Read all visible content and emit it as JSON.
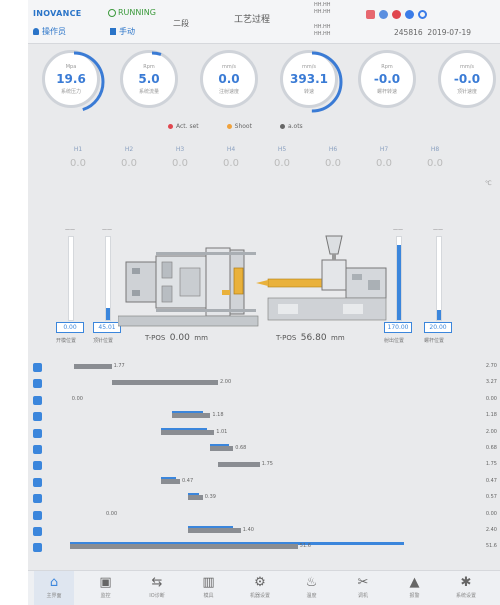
{
  "header": {
    "brand": "INOVANCE",
    "run_status": "RUNNING",
    "user": "操作员",
    "mode": "手动",
    "step": "二段",
    "title": "工艺过程",
    "mini_top": [
      "HH.HH",
      "HH.HH"
    ],
    "mini_bottom": [
      "HH.HH",
      "HH.HH"
    ],
    "date_code": "245816",
    "date": "2019-07-19"
  },
  "gauges": [
    {
      "unit": "Mpa",
      "value": "19.6",
      "label": "系统压力",
      "progress": 0.45
    },
    {
      "unit": "Rpm",
      "value": "5.0",
      "label": "系统流量",
      "progress": 0.05
    },
    {
      "unit": "mm/s",
      "value": "0.0",
      "label": "注射速度",
      "progress": 0
    },
    {
      "unit": "mm/s",
      "value": "393.1",
      "label": "转速",
      "progress": 0.5
    },
    {
      "unit": "Rpm",
      "value": "-0.0",
      "label": "螺杆转速",
      "progress": 0
    },
    {
      "unit": "mm/s",
      "value": "-0.0",
      "label": "顶针速度",
      "progress": 0
    }
  ],
  "legend": [
    {
      "label": "Act. set",
      "color": "#e0474f"
    },
    {
      "label": "Shoot",
      "color": "#f0a23c"
    },
    {
      "label": "a.ots",
      "color": "#666666"
    }
  ],
  "temps": {
    "headers": [
      "H1",
      "H2",
      "H3",
      "H4",
      "H5",
      "H6",
      "H7",
      "H8"
    ],
    "values": [
      "0.0",
      "0.0",
      "0.0",
      "0.0",
      "0.0",
      "0.0",
      "0.0",
      "0.0"
    ],
    "unit": "℃"
  },
  "machine": {
    "left_bars": [
      {
        "cap": "——",
        "value": "0.00",
        "label": "开模位置",
        "level": 0
      },
      {
        "cap": "——",
        "value": "45.01",
        "label": "顶针位置",
        "level": 0.15
      }
    ],
    "right_bars": [
      {
        "cap": "——",
        "value": "170.00",
        "label": "射出位置",
        "level": 0.9
      },
      {
        "cap": "——",
        "value": "20.00",
        "label": "螺杆位置",
        "level": 0.12
      }
    ],
    "pos1_label": "T-POS",
    "pos1_value": "0.00",
    "pos1_unit": "mm",
    "pos2_label": "T-POS",
    "pos2_value": "56.80",
    "pos2_unit": "mm"
  },
  "bars": [
    {
      "icon": "clamp-icon",
      "gray_pct": 0.1,
      "blue_pct": 0,
      "label": "1.77",
      "right": "2.70"
    },
    {
      "icon": "open-icon",
      "gray_pct": 0.28,
      "blue_pct": 0,
      "label": "2.00",
      "right": "3.27"
    },
    {
      "icon": "eject-icon",
      "gray_pct": 0,
      "blue_pct": 0,
      "label": "0.00",
      "right": "0.00"
    },
    {
      "icon": "inject-icon",
      "gray_pct": 0.1,
      "blue_pct": 0.08,
      "label": "1.18",
      "right": "1.18"
    },
    {
      "icon": "hold-icon",
      "gray_pct": 0.14,
      "blue_pct": 0.12,
      "label": "1.01",
      "right": "2.00"
    },
    {
      "icon": "charge-icon",
      "gray_pct": 0.06,
      "blue_pct": 0.05,
      "label": "0.68",
      "right": "0.68"
    },
    {
      "icon": "cool-icon",
      "gray_pct": 0.11,
      "blue_pct": 0,
      "label": "1.75",
      "right": "1.75"
    },
    {
      "icon": "carriage-icon",
      "gray_pct": 0.05,
      "blue_pct": 0.04,
      "label": "0.47",
      "right": "0.47"
    },
    {
      "icon": "core-icon",
      "gray_pct": 0.04,
      "blue_pct": 0.03,
      "label": "0.39",
      "right": "0.57"
    },
    {
      "icon": "robot-icon",
      "gray_pct": 0,
      "blue_pct": 0,
      "label": "0.00",
      "right": "0.00"
    },
    {
      "icon": "mold-icon",
      "gray_pct": 0.14,
      "blue_pct": 0.12,
      "label": "1.40",
      "right": "2.40"
    },
    {
      "icon": "cycle-icon",
      "gray_pct": 0.6,
      "blue_pct": 0.88,
      "label": "51.6",
      "right": "51.6"
    }
  ],
  "nav": [
    {
      "icon": "home-icon",
      "label": "主界面",
      "active": true
    },
    {
      "icon": "monitor-icon",
      "label": "监控"
    },
    {
      "icon": "io-icon",
      "label": "IO诊断"
    },
    {
      "icon": "mold-set-icon",
      "label": "模具"
    },
    {
      "icon": "gear-icon",
      "label": "机器设置"
    },
    {
      "icon": "temp-icon",
      "label": "温度"
    },
    {
      "icon": "tools-icon",
      "label": "调机"
    },
    {
      "icon": "alarm-icon",
      "label": "报警"
    },
    {
      "icon": "settings-icon",
      "label": "系统设置"
    }
  ]
}
